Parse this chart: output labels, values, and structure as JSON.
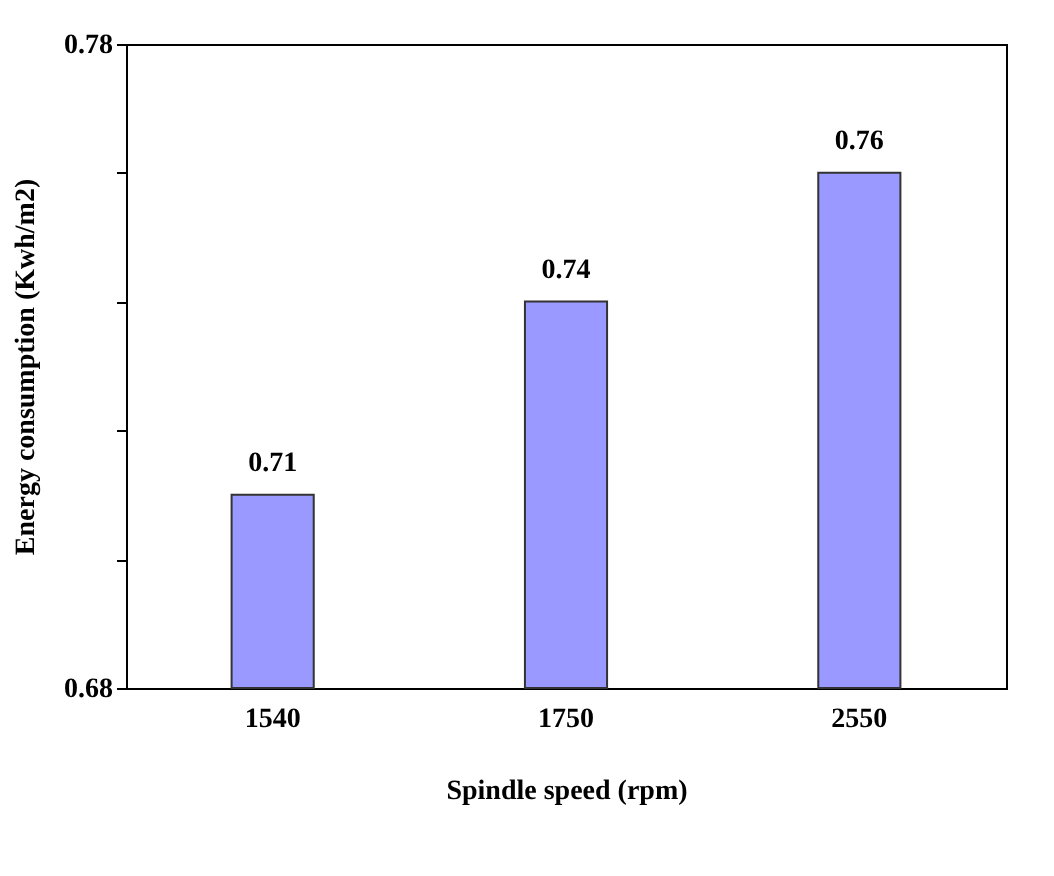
{
  "chart_data": {
    "type": "bar",
    "categories": [
      "1540",
      "1750",
      "2550"
    ],
    "values": [
      0.71,
      0.74,
      0.76
    ],
    "color": "#9999ff",
    "xlabel": "Spindle speed (rpm)",
    "ylabel": "Energy consumption (Kwh/m2)",
    "ylim": [
      0.68,
      0.78
    ],
    "yticks": [
      0.68,
      {
        "value": 0.7,
        "label": null
      },
      {
        "value": 0.72,
        "label": null
      },
      {
        "value": 0.74,
        "label": null
      },
      {
        "value": 0.76,
        "label": null
      },
      0.78
    ],
    "data_labels": true,
    "grid": false
  }
}
